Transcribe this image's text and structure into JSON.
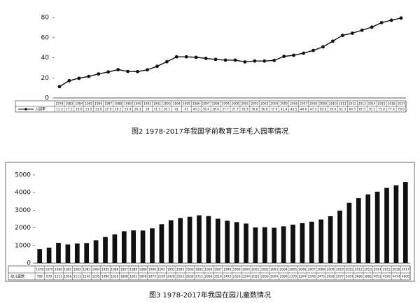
{
  "chart_data": [
    {
      "type": "line",
      "title": "图2 1978-2017年我国学前教育三年毛入园率情况",
      "categories": [
        "1978",
        "1983",
        "1984",
        "1985",
        "1986",
        "1987",
        "1988",
        "1989",
        "1990",
        "1991",
        "1992",
        "1993",
        "1994",
        "1995",
        "1996",
        "1997",
        "1998",
        "1999",
        "2000",
        "2001",
        "2002",
        "2003",
        "2004",
        "2005",
        "2006",
        "2007",
        "2008",
        "2009",
        "2010",
        "2011",
        "2012",
        "2013",
        "2014",
        "2015",
        "2016",
        "2017"
      ],
      "series": [
        {
          "name": "入园率",
          "color": "#111111",
          "values": [
            11.3,
            17.2,
            19.6,
            21.5,
            23.9,
            25.9,
            28.2,
            26.4,
            26.3,
            28,
            31.5,
            36.1,
            41,
            41,
            40.5,
            39.4,
            38.4,
            37.7,
            37.7,
            35.9,
            36.8,
            36.8,
            37.4,
            41.4,
            42.5,
            44.6,
            47.3,
            50.9,
            56.6,
            62.3,
            64.5,
            67.5,
            70.5,
            75,
            77.4,
            79.6
          ],
          "value_labels": [
            "11.3",
            "17.2",
            "19.6",
            "21.5",
            "23.9",
            "25.9",
            "28.2",
            "26.4",
            "26.3",
            "28",
            "31.5",
            "36.1",
            "41",
            "41",
            "40.5",
            "39.4",
            "38.4",
            "37.7",
            "37.7",
            "35.9",
            "36.8",
            "36.8",
            "37.4",
            "41.4",
            "42.5",
            "44.6",
            "47.3",
            "50.9",
            "56.6",
            "62.3",
            "64.5",
            "67.5",
            "70.5",
            "75.0",
            "77.4",
            "79.6"
          ]
        }
      ],
      "ylim": [
        0,
        85
      ],
      "yticks": [
        0,
        20,
        40,
        60,
        80
      ],
      "grid": false
    },
    {
      "type": "bar",
      "title": "图3 1978-2017年我国在园儿童数情况",
      "categories": [
        "1978",
        "1979",
        "1980",
        "1981",
        "1982",
        "1983",
        "1984",
        "1985",
        "1986",
        "1987",
        "1988",
        "1989",
        "1990",
        "1991",
        "1992",
        "1993",
        "1994",
        "1995",
        "1996",
        "1997",
        "1998",
        "1999",
        "2000",
        "2001",
        "2002",
        "2003",
        "2004",
        "2005",
        "2006",
        "2007",
        "2008",
        "2009",
        "2010",
        "2011",
        "2012",
        "2013",
        "2014",
        "2015",
        "2016",
        "2017"
      ],
      "series": [
        {
          "name": "幼儿童数",
          "color": "#111111",
          "values": [
            788,
            879,
            1151,
            1056,
            1113,
            1140,
            1295,
            1480,
            1629,
            1808,
            1855,
            1848,
            1972,
            2209,
            2428,
            2553,
            2630,
            2711,
            2666,
            2519,
            2403,
            2326,
            2244,
            2022,
            2036,
            2004,
            2089,
            2179,
            2264,
            2349,
            2475,
            2658,
            2977,
            3424,
            3686,
            3895,
            4051,
            4265,
            4414,
            4600
          ]
        }
      ],
      "ylim": [
        0,
        5000
      ],
      "yticks": [
        0,
        1000,
        2000,
        3000,
        4000,
        5000
      ],
      "grid": false
    }
  ]
}
